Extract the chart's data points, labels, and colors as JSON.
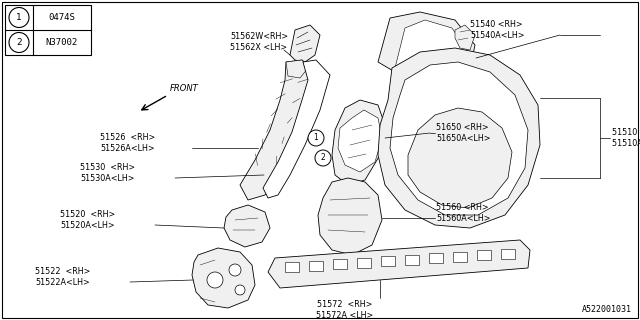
{
  "bg_color": "#ffffff",
  "line_color": "#000000",
  "part_color": "#f0f0f0",
  "legend": [
    {
      "num": "1",
      "code": "0474S"
    },
    {
      "num": "2",
      "code": "N37002"
    }
  ],
  "footer": "A522001031",
  "figsize": [
    6.4,
    3.2
  ],
  "dpi": 100
}
